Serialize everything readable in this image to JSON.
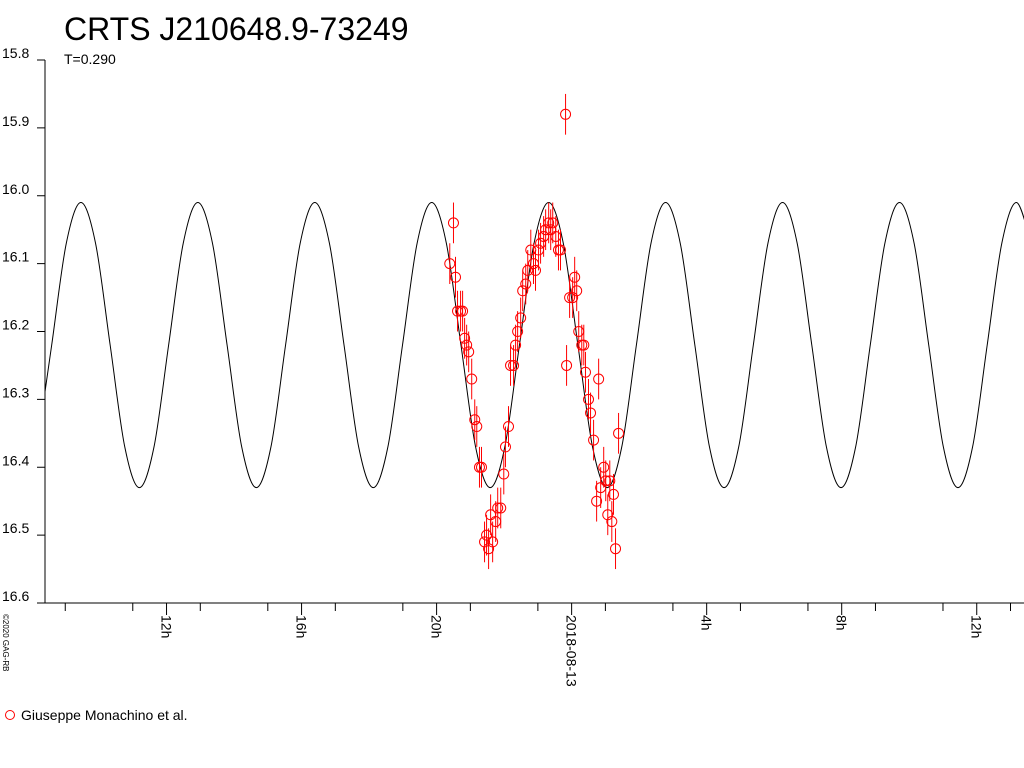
{
  "chart_data": {
    "type": "scatter",
    "title": "CRTS J210648.9-73249",
    "subtitle": "T=0.290",
    "credit": "©2020 GAG-RB",
    "xlim": [
      -15.6,
      13.4
    ],
    "xticks": [
      {
        "value": -12,
        "label": "12h"
      },
      {
        "value": -8,
        "label": "16h"
      },
      {
        "value": -4,
        "label": "20h"
      },
      {
        "value": 0,
        "label": "2018-08-13"
      },
      {
        "value": 4,
        "label": "4h"
      },
      {
        "value": 8,
        "label": "8h"
      },
      {
        "value": 12,
        "label": "12h"
      }
    ],
    "xminor_ticks": [
      -15,
      -13,
      -11,
      -9,
      -7,
      -5,
      -3,
      -1,
      1,
      3,
      5,
      7,
      9,
      11,
      13
    ],
    "ylim": [
      16.6,
      15.8
    ],
    "yticks": [
      15.8,
      15.9,
      {
        "value": 16,
        "label": "16.0"
      },
      16.1,
      16.2,
      16.3,
      16.4,
      16.5,
      16.6
    ],
    "legend": "bottom-left",
    "series": [
      {
        "type": "line",
        "color": "#000000",
        "x": [
          -15.835,
          -15.402,
          -14.969,
          -14.536,
          -14.103,
          -13.67,
          -13.237,
          -12.804,
          -12.371,
          -11.938,
          -11.505,
          -11.072,
          -10.639,
          -10.206,
          -9.773,
          -9.34,
          -8.907,
          -8.474,
          -8.041,
          -7.608,
          -7.175,
          -6.742,
          -6.309,
          -5.876,
          -5.443,
          -5.01,
          -4.577,
          -4.144,
          -3.711,
          -3.278,
          -2.845,
          -2.412,
          -1.979,
          -1.546,
          -1.113,
          -0.68,
          -0.247,
          0.186,
          0.619,
          1.052,
          1.485,
          1.918,
          2.351,
          2.784,
          3.217,
          3.65,
          4.083,
          4.516,
          4.949,
          5.382,
          5.815,
          6.248,
          6.681,
          7.114,
          7.547,
          7.98,
          8.413,
          8.846,
          9.279,
          9.712,
          10.145,
          10.578,
          11.011,
          11.444,
          11.877,
          12.31,
          12.743,
          13.176,
          13.609
        ],
        "values": [
          16.37,
          16.22,
          16.07,
          16.01,
          16.07,
          16.22,
          16.37,
          16.43,
          16.37,
          16.22,
          16.07,
          16.01,
          16.07,
          16.22,
          16.37,
          16.43,
          16.37,
          16.22,
          16.07,
          16.01,
          16.07,
          16.22,
          16.37,
          16.43,
          16.37,
          16.22,
          16.07,
          16.01,
          16.07,
          16.22,
          16.37,
          16.43,
          16.37,
          16.22,
          16.07,
          16.01,
          16.07,
          16.22,
          16.37,
          16.43,
          16.37,
          16.22,
          16.07,
          16.01,
          16.07,
          16.22,
          16.37,
          16.43,
          16.37,
          16.22,
          16.07,
          16.01,
          16.07,
          16.22,
          16.37,
          16.43,
          16.37,
          16.22,
          16.07,
          16.01,
          16.07,
          16.22,
          16.37,
          16.43,
          16.37,
          16.22,
          16.07,
          16.01,
          16.07
        ]
      },
      {
        "type": "scatter",
        "name": "Giuseppe Monachino et al.",
        "color": "#ff0000",
        "error": 0.03,
        "x": [
          -3.61,
          -3.5,
          -3.44,
          -3.38,
          -3.29,
          -3.23,
          -3.17,
          -3.11,
          -3.05,
          -2.96,
          -2.87,
          -2.81,
          -2.73,
          -2.67,
          -2.58,
          -2.52,
          -2.46,
          -2.4,
          -2.34,
          -2.25,
          -2.19,
          -2.1,
          -2.01,
          -1.96,
          -1.87,
          -1.81,
          -1.72,
          -1.66,
          -1.6,
          -1.51,
          -1.45,
          -1.36,
          -1.3,
          -1.21,
          -1.13,
          -1.07,
          -0.98,
          -0.92,
          -0.83,
          -0.77,
          -0.68,
          -0.62,
          -0.56,
          -0.47,
          -0.39,
          -0.33,
          -0.18,
          -0.15,
          -0.06,
          0.03,
          0.09,
          0.15,
          0.21,
          0.3,
          0.36,
          0.41,
          0.5,
          0.56,
          0.65,
          0.74,
          0.8,
          0.86,
          0.95,
          1.01,
          1.07,
          1.13,
          1.19,
          1.24,
          1.3,
          1.39
        ],
        "values": [
          16.1,
          16.04,
          16.12,
          16.17,
          16.17,
          16.17,
          16.21,
          16.22,
          16.23,
          16.27,
          16.33,
          16.34,
          16.4,
          16.4,
          16.51,
          16.5,
          16.52,
          16.47,
          16.51,
          16.48,
          16.46,
          16.46,
          16.41,
          16.37,
          16.34,
          16.25,
          16.25,
          16.22,
          16.2,
          16.18,
          16.14,
          16.13,
          16.11,
          16.08,
          16.1,
          16.11,
          16.08,
          16.07,
          16.06,
          16.05,
          16.04,
          16.05,
          16.04,
          16.06,
          16.08,
          16.08,
          15.88,
          16.25,
          16.15,
          16.15,
          16.12,
          16.14,
          16.2,
          16.22,
          16.22,
          16.26,
          16.3,
          16.32,
          16.36,
          16.45,
          16.27,
          16.43,
          16.4,
          16.42,
          16.47,
          16.42,
          16.48,
          16.44,
          16.52,
          16.35
        ]
      }
    ]
  }
}
